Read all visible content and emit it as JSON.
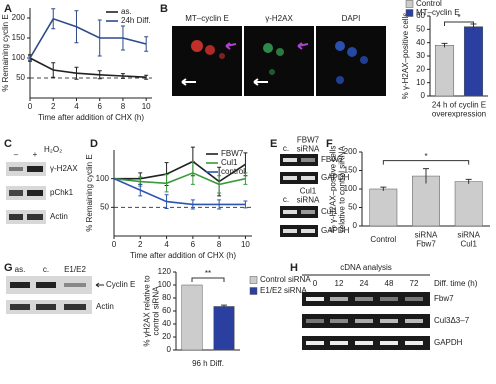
{
  "panels": {
    "letters": [
      "A",
      "B",
      "C",
      "D",
      "E",
      "F",
      "G",
      "H"
    ]
  },
  "micrographs": {
    "labels": [
      "MT–cyclin E",
      "γ-H2AX",
      "DAPI"
    ]
  },
  "blot_c": {
    "header": [
      "–",
      "+",
      "H₂O₂"
    ],
    "rows": [
      "γ-H2AX",
      "pChk1",
      "Actin"
    ]
  },
  "blot_e": {
    "header_top": [
      "c.",
      "FBW7\nsiRNA"
    ],
    "rows_top": [
      "FBW7",
      "GAPDH"
    ],
    "header_bottom": [
      "c.",
      "Cul1\nsiRNA"
    ],
    "rows_bottom": [
      "Cul1",
      "GAPDH"
    ]
  },
  "blot_g": {
    "header": [
      "as.",
      "c.",
      "E1/E2"
    ],
    "rows": [
      "Cyclin E",
      "Actin"
    ]
  },
  "blot_h": {
    "title": "cDNA analysis",
    "time_label": "Diff. time (h)",
    "times": [
      "0",
      "12",
      "24",
      "48",
      "72"
    ],
    "rows": [
      "Fbw7",
      "Cul3Δ3–7",
      "GAPDH"
    ]
  },
  "chart_data": [
    {
      "type": "line",
      "y_label": "% Remaining cyclin E",
      "x_label": "Time after addition of CHX (h)",
      "x": [
        0,
        2,
        4,
        6,
        8,
        10
      ],
      "xlim": [
        0,
        10.5
      ],
      "xticks": [
        0,
        2,
        4,
        6,
        8,
        10
      ],
      "ylim": [
        0,
        225
      ],
      "yticks": [
        50,
        100,
        150,
        200
      ],
      "reference_line": 50,
      "series": [
        {
          "name": "as.",
          "color": "#222222",
          "values": [
            100,
            70,
            62,
            58,
            55,
            52
          ],
          "errors": [
            8,
            18,
            15,
            10,
            6,
            5
          ]
        },
        {
          "name": "24h Diff.",
          "color": "#2d4a8a",
          "values": [
            100,
            198,
            178,
            150,
            150,
            135
          ],
          "errors": [
            5,
            25,
            40,
            45,
            30,
            18
          ]
        }
      ]
    },
    {
      "type": "bar",
      "y_label": "% γ-H2AX–positive cells",
      "x_label": "24 h of cyclin E\noverexpression",
      "categories": [
        "Control",
        "MT–cyclin E"
      ],
      "values": [
        38,
        52
      ],
      "errors": [
        1.5,
        2
      ],
      "colors": [
        "#cccccc",
        "#2a3fa0"
      ],
      "ylim": [
        0,
        60
      ],
      "yticks": [
        0,
        10,
        20,
        30,
        40,
        50,
        60
      ],
      "legend": "top",
      "significance": "*"
    },
    {
      "type": "line",
      "y_label": "% Remaining cyclin E",
      "x_label": "Time after addition of CHX (h)",
      "x": [
        0,
        2,
        4,
        6,
        8,
        10
      ],
      "xlim": [
        0,
        10.5
      ],
      "xticks": [
        0,
        2,
        4,
        6,
        8,
        10
      ],
      "ylim": [
        0,
        150
      ],
      "yticks": [
        50,
        100
      ],
      "reference_line": 50,
      "series": [
        {
          "name": "FBW7",
          "color": "#222222",
          "values": [
            100,
            100,
            108,
            130,
            95,
            125
          ],
          "errors": [
            0,
            10,
            20,
            25,
            25,
            20
          ]
        },
        {
          "name": "Cul1",
          "color": "#3a9a3a",
          "values": [
            100,
            95,
            92,
            110,
            90,
            100
          ],
          "errors": [
            0,
            8,
            15,
            20,
            15,
            10
          ]
        },
        {
          "name": "control",
          "color": "#2d55b0",
          "values": [
            100,
            80,
            60,
            55,
            55,
            55
          ],
          "errors": [
            0,
            10,
            12,
            8,
            8,
            6
          ]
        }
      ]
    },
    {
      "type": "bar",
      "y_label": "% γ-H2AX–positive cells\nrelative to control siRNA",
      "categories": [
        "Control",
        "siRNA\nFbw7",
        "siRNA\nCul1"
      ],
      "values": [
        100,
        135,
        120
      ],
      "errors": [
        5,
        20,
        6
      ],
      "colors": [
        "#cccccc",
        "#cccccc",
        "#cccccc"
      ],
      "ylim": [
        0,
        200
      ],
      "yticks": [
        0,
        50,
        100,
        150,
        200
      ],
      "significance": "*"
    },
    {
      "type": "bar",
      "y_label": "% γH2AX relative to\ncontrol siRNA",
      "x_label": "96 h Diff.",
      "categories": [
        "Control siRNA",
        "E1/E2 siRNA"
      ],
      "values": [
        100,
        67
      ],
      "errors": [
        0,
        2
      ],
      "colors": [
        "#cccccc",
        "#2a3fa0"
      ],
      "ylim": [
        0,
        120
      ],
      "yticks": [
        0,
        20,
        40,
        60,
        80,
        100,
        120
      ],
      "legend": "right",
      "significance": "**"
    }
  ]
}
